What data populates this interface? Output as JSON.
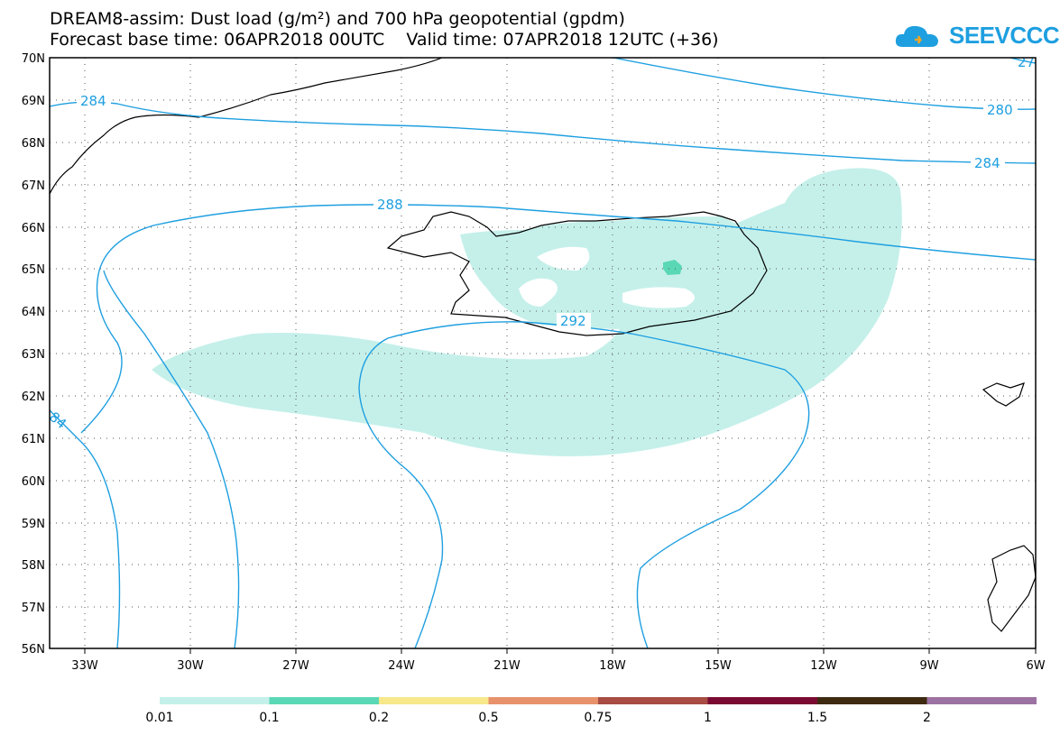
{
  "header": {
    "line1": "DREAM8-assim: Dust load (g/m²) and 700 hPa geopotential (gpdm)",
    "line2": "Forecast base time: 06APR2018 00UTC    Valid time: 07APR2018 12UTC (+36)"
  },
  "logo": {
    "text": "SEEVCCC",
    "color": "#1e9fe0"
  },
  "map": {
    "lat_labels": [
      "70N",
      "69N",
      "68N",
      "67N",
      "66N",
      "65N",
      "64N",
      "63N",
      "62N",
      "61N",
      "60N",
      "59N",
      "58N",
      "57N",
      "56N"
    ],
    "lon_labels": [
      "33W",
      "30W",
      "27W",
      "24W",
      "21W",
      "18W",
      "15W",
      "12W",
      "9W",
      "6W"
    ],
    "contour_color": "#1e9fe0",
    "dust_color": "#c5f0ea",
    "dust_color_high": "#5ad8b6",
    "contour_labels": [
      {
        "id": "c284a",
        "text": "284"
      },
      {
        "id": "c280",
        "text": "280"
      },
      {
        "id": "c284b",
        "text": "284"
      },
      {
        "id": "c288",
        "text": "288"
      },
      {
        "id": "c292",
        "text": "292"
      },
      {
        "id": "c284c",
        "text": "84"
      },
      {
        "id": "c27",
        "text": "27"
      }
    ]
  },
  "legend": {
    "colors": [
      "#c5f0ea",
      "#5ad8b6",
      "#f7e88a",
      "#e8926b",
      "#a84c44",
      "#7a0a32",
      "#3e2a10",
      "#9c72a2"
    ],
    "labels": [
      "0.01",
      "0.1",
      "0.2",
      "0.5",
      "0.75",
      "1",
      "1.5",
      "2"
    ]
  }
}
